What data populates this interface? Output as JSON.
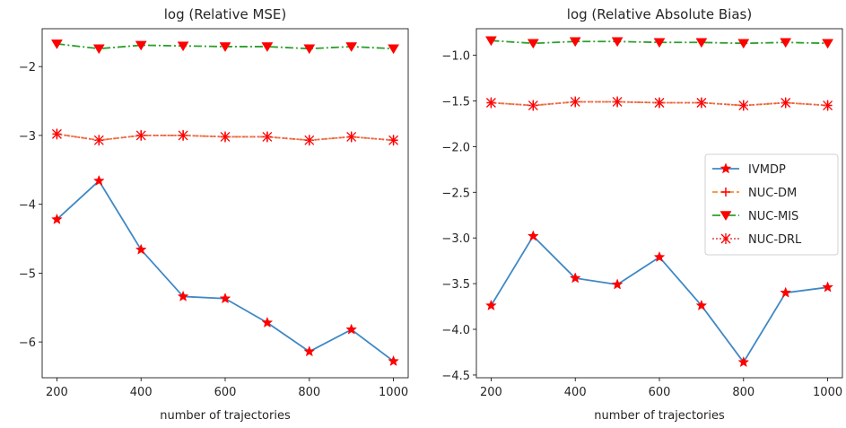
{
  "colors": {
    "IVMDP": "#3f88c5",
    "NUC-DM": "#ff8b2e",
    "NUC-MIS": "#2ca02c",
    "NUC-DRL": "#e35d5d",
    "marker": "#ff0000"
  },
  "chart_data": [
    {
      "type": "line",
      "title": "log (Relative MSE)",
      "xlabel": "number of trajectories",
      "ylabel": "",
      "x": [
        200,
        300,
        400,
        500,
        600,
        700,
        800,
        900,
        1000
      ],
      "xticks": [
        "200",
        "400",
        "600",
        "800",
        "1000"
      ],
      "xtick_values": [
        200,
        400,
        600,
        800,
        1000
      ],
      "xlim": [
        165,
        1035
      ],
      "yticks": [
        "−2",
        "−3",
        "−4",
        "−5",
        "−6"
      ],
      "ytick_values": [
        -2,
        -3,
        -4,
        -5,
        -6
      ],
      "ylim": [
        -6.52,
        -1.45
      ],
      "grid": false,
      "legend": null,
      "series": [
        {
          "name": "IVMDP",
          "values": [
            -4.22,
            -3.66,
            -4.66,
            -5.34,
            -5.37,
            -5.72,
            -6.14,
            -5.82,
            -6.28
          ]
        },
        {
          "name": "NUC-DM",
          "values": [
            -2.98,
            -3.07,
            -3.0,
            -3.0,
            -3.02,
            -3.02,
            -3.07,
            -3.02,
            -3.07
          ]
        },
        {
          "name": "NUC-MIS",
          "values": [
            -1.67,
            -1.74,
            -1.69,
            -1.7,
            -1.71,
            -1.71,
            -1.74,
            -1.71,
            -1.74
          ]
        },
        {
          "name": "NUC-DRL",
          "values": [
            -2.98,
            -3.07,
            -3.0,
            -3.0,
            -3.02,
            -3.02,
            -3.07,
            -3.02,
            -3.07
          ]
        }
      ]
    },
    {
      "type": "line",
      "title": "log (Relative Absolute Bias)",
      "xlabel": "number of trajectories",
      "ylabel": "",
      "x": [
        200,
        300,
        400,
        500,
        600,
        700,
        800,
        900,
        1000
      ],
      "xticks": [
        "200",
        "400",
        "600",
        "800",
        "1000"
      ],
      "xtick_values": [
        200,
        400,
        600,
        800,
        1000
      ],
      "xlim": [
        165,
        1035
      ],
      "yticks": [
        "−1.0",
        "−1.5",
        "−2.0",
        "−2.5",
        "−3.0",
        "−3.5",
        "−4.0",
        "−4.5"
      ],
      "ytick_values": [
        -1.0,
        -1.5,
        -2.0,
        -2.5,
        -3.0,
        -3.5,
        -4.0,
        -4.5
      ],
      "ylim": [
        -4.53,
        -0.71
      ],
      "grid": false,
      "legend": "center-right",
      "series": [
        {
          "name": "IVMDP",
          "values": [
            -3.74,
            -2.98,
            -3.44,
            -3.51,
            -3.21,
            -3.74,
            -4.36,
            -3.6,
            -3.54
          ]
        },
        {
          "name": "NUC-DM",
          "values": [
            -1.52,
            -1.55,
            -1.51,
            -1.51,
            -1.52,
            -1.52,
            -1.55,
            -1.52,
            -1.55
          ]
        },
        {
          "name": "NUC-MIS",
          "values": [
            -0.84,
            -0.87,
            -0.85,
            -0.85,
            -0.86,
            -0.86,
            -0.87,
            -0.86,
            -0.87
          ]
        },
        {
          "name": "NUC-DRL",
          "values": [
            -1.52,
            -1.55,
            -1.51,
            -1.51,
            -1.52,
            -1.52,
            -1.55,
            -1.52,
            -1.55
          ]
        }
      ]
    }
  ]
}
